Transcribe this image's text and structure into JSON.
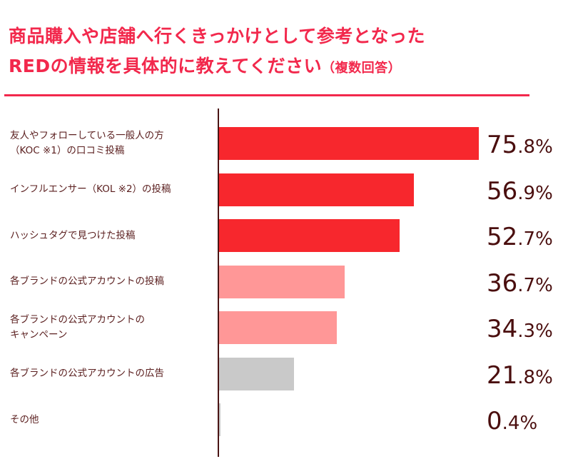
{
  "title": {
    "line1": "商品購入や店舗へ行くきっかけとして参考となった",
    "line2": "REDの情報を具体的に教えてください",
    "note": "（複数回答）"
  },
  "chart_data": {
    "type": "bar",
    "orientation": "horizontal",
    "unit": "%",
    "categories": [
      [
        "友人やフォローしている一般人の方",
        "（KOC ※1）の口コミ投稿"
      ],
      [
        "インフルエンサー（KOL ※2）の投稿"
      ],
      [
        "ハッシュタグで見つけた投稿"
      ],
      [
        "各ブランドの公式アカウントの投稿"
      ],
      [
        "各ブランドの公式アカウントの",
        "キャンペーン"
      ],
      [
        "各ブランドの公式アカウントの広告"
      ],
      [
        "その他"
      ]
    ],
    "values": [
      75.8,
      56.9,
      52.7,
      36.7,
      34.3,
      21.8,
      0.4
    ],
    "bar_colors": [
      "#f7272d",
      "#f7272d",
      "#f7272d",
      "#ff9797",
      "#ff9797",
      "#c9c9c9",
      "#c9c9c9"
    ],
    "grid": false,
    "legend": "none"
  },
  "colors": {
    "title": "#f2284c",
    "text": "#5a1e1e"
  }
}
